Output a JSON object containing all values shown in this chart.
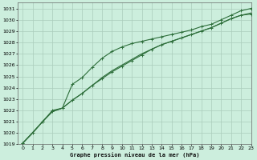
{
  "title": "Graphe pression niveau de la mer (hPa)",
  "bg_color": "#cceedd",
  "grid_color": "#aaccbb",
  "line_color": "#2d6e3a",
  "xlim": [
    -0.5,
    23
  ],
  "ylim": [
    1019,
    1031.5
  ],
  "xticks": [
    0,
    1,
    2,
    3,
    4,
    5,
    6,
    7,
    8,
    9,
    10,
    11,
    12,
    13,
    14,
    15,
    16,
    17,
    18,
    19,
    20,
    21,
    22,
    23
  ],
  "yticks": [
    1019,
    1020,
    1021,
    1022,
    1023,
    1024,
    1025,
    1026,
    1027,
    1028,
    1029,
    1030,
    1031
  ],
  "line1": [
    1019.1,
    1020.0,
    1021.0,
    1021.9,
    1022.2,
    1022.9,
    1023.5,
    1024.2,
    1024.9,
    1025.5,
    1026.0,
    1026.5,
    1027.0,
    1027.4,
    1027.8,
    1028.1,
    1028.4,
    1028.7,
    1029.0,
    1029.3,
    1029.7,
    1030.1,
    1030.4,
    1030.6
  ],
  "line2_x": [
    0,
    2,
    3,
    4,
    5,
    6,
    7,
    8,
    9,
    10,
    11,
    12,
    13,
    14,
    15,
    16,
    17,
    18,
    19,
    20,
    21,
    22,
    23
  ],
  "line2": [
    1019.1,
    1021.0,
    1022.0,
    1022.2,
    1024.3,
    1024.9,
    1025.8,
    1026.6,
    1027.2,
    1027.6,
    1027.9,
    1028.1,
    1028.3,
    1028.5,
    1028.7,
    1028.9,
    1029.1,
    1029.4,
    1029.6,
    1030.0,
    1030.4,
    1030.8,
    1031.0
  ],
  "line3": [
    1019.1,
    1020.0,
    1021.0,
    1021.9,
    1022.2,
    1022.9,
    1023.5,
    1024.2,
    1024.8,
    1025.4,
    1025.9,
    1026.4,
    1026.9,
    1027.4,
    1027.8,
    1028.1,
    1028.4,
    1028.7,
    1029.0,
    1029.3,
    1029.7,
    1030.1,
    1030.4,
    1030.5
  ],
  "xtick_labels": [
    "0",
    "1",
    "2",
    "3",
    "4",
    "5",
    "6",
    "7",
    "8",
    "9",
    "10",
    "11",
    "12",
    "13",
    "14",
    "15",
    "16",
    "17",
    "18",
    "19",
    "20",
    "21",
    "22",
    "23"
  ],
  "marker_size": 2.5,
  "line_width": 0.8
}
